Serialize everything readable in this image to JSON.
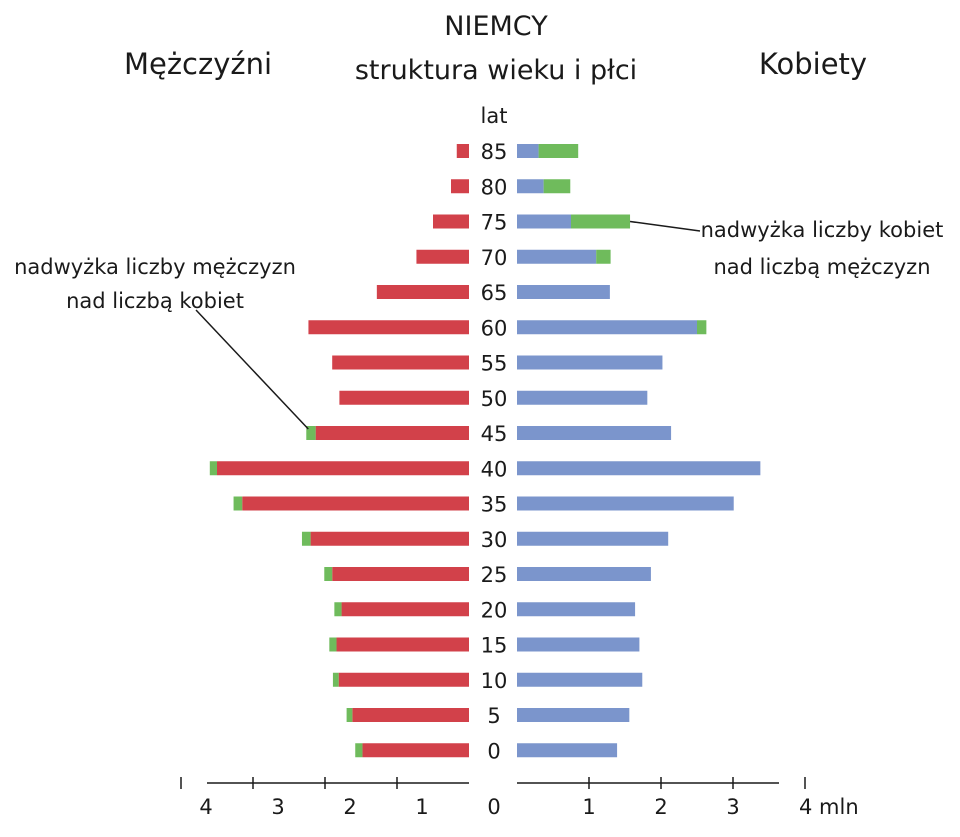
{
  "chart_data": {
    "type": "bar",
    "title": "NIEMCY",
    "subtitle": "struktura wieku i płci",
    "left_label": "Mężczyźni",
    "right_label": "Kobiety",
    "age_axis_label": "lat",
    "x_unit": "mln",
    "xlim": [
      0,
      4
    ],
    "x_ticks_left": [
      "4",
      "3",
      "2",
      "1",
      "0"
    ],
    "x_ticks_right": [
      "1",
      "2",
      "3",
      "4 mln"
    ],
    "categories": [
      "85",
      "80",
      "75",
      "70",
      "65",
      "60",
      "55",
      "50",
      "45",
      "40",
      "35",
      "30",
      "25",
      "20",
      "15",
      "10",
      "5",
      "0"
    ],
    "series": [
      {
        "name": "Mężczyźni",
        "side": "left",
        "values": [
          0.17,
          0.25,
          0.5,
          0.73,
          1.28,
          2.23,
          1.9,
          1.8,
          2.13,
          3.5,
          3.15,
          2.2,
          1.9,
          1.77,
          1.84,
          1.81,
          1.62,
          1.48
        ]
      },
      {
        "name": "Kobiety",
        "side": "right",
        "values": [
          0.3,
          0.37,
          0.75,
          1.1,
          1.29,
          2.5,
          2.02,
          1.81,
          2.14,
          3.38,
          3.01,
          2.1,
          1.86,
          1.64,
          1.7,
          1.74,
          1.56,
          1.39
        ]
      }
    ],
    "surplus_men": [
      0,
      0,
      0,
      0,
      0,
      0,
      0,
      0,
      0.13,
      0.1,
      0.12,
      0.12,
      0.11,
      0.1,
      0.1,
      0.08,
      0.08,
      0.1
    ],
    "surplus_women": [
      0.55,
      0.37,
      0.82,
      0.2,
      0,
      0.13,
      0,
      0,
      0,
      0,
      0,
      0,
      0,
      0,
      0,
      0,
      0,
      0
    ],
    "annotations": [
      {
        "lines": [
          "nadwyżka liczby kobiet",
          "nad liczbą mężczyzn"
        ],
        "target_category": "75",
        "side": "right"
      },
      {
        "lines": [
          "nadwyżka liczby mężczyzn",
          "nad liczbą kobiet"
        ],
        "target_category": "45",
        "side": "left"
      }
    ],
    "colors": {
      "men": "#d2414a",
      "women": "#7b95cc",
      "surplus": "#6fbb5c",
      "axis": "#1a1a1a"
    },
    "grid": false
  }
}
